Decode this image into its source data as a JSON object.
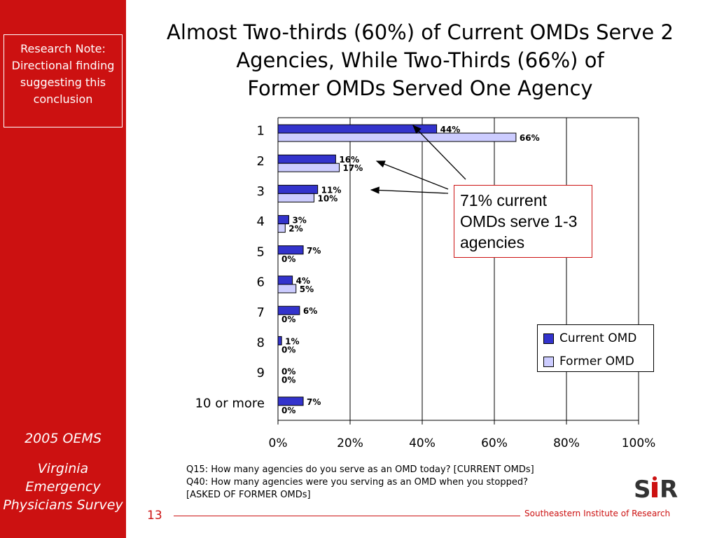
{
  "sidebar": {
    "research_note": "Research Note: Directional finding suggesting this conclusion",
    "year_label": "2005 OEMS",
    "survey_label": "Virginia Emergency Physicians Survey"
  },
  "slide": {
    "title_line1": "Almost Two-thirds (60%) of Current OMDs Serve 2",
    "title_line2": "Agencies, While Two-Thirds (66%) of",
    "title_line3": "Former OMDs Served One Agency",
    "callout": "71% current OMDs serve 1-3 agencies",
    "footnote_line1": "Q15: How many agencies do you serve as an OMD today?  [CURRENT OMDs]",
    "footnote_line2": "Q40: How many agencies were you serving as an OMD when you stopped?",
    "footnote_line3": "[ASKED OF FORMER OMDs]",
    "page_number": "13",
    "organization": "Southeastern Institute of Research",
    "logo_text": "SIR"
  },
  "chart_data": {
    "type": "bar",
    "orientation": "horizontal",
    "categories": [
      "1",
      "2",
      "3",
      "4",
      "5",
      "6",
      "7",
      "8",
      "9",
      "10 or more"
    ],
    "series": [
      {
        "name": "Current OMD",
        "color": "#3333cc",
        "values": [
          44,
          16,
          11,
          3,
          7,
          4,
          6,
          1,
          0,
          7
        ],
        "labels": [
          "44%",
          "16%",
          "11%",
          "3%",
          "7%",
          "4%",
          "6%",
          "1%",
          "0%",
          "7%"
        ]
      },
      {
        "name": "Former OMD",
        "color": "#ccccff",
        "values": [
          66,
          17,
          10,
          2,
          0,
          5,
          0,
          0,
          0,
          0
        ],
        "labels": [
          "66%",
          "17%",
          "10%",
          "2%",
          "0%",
          "5%",
          "0%",
          "0%",
          "0%",
          "0%"
        ]
      }
    ],
    "xlim": [
      0,
      100
    ],
    "x_ticks": [
      "0%",
      "20%",
      "40%",
      "60%",
      "80%",
      "100%"
    ],
    "grid": true,
    "legend_position": "bottom-right"
  }
}
